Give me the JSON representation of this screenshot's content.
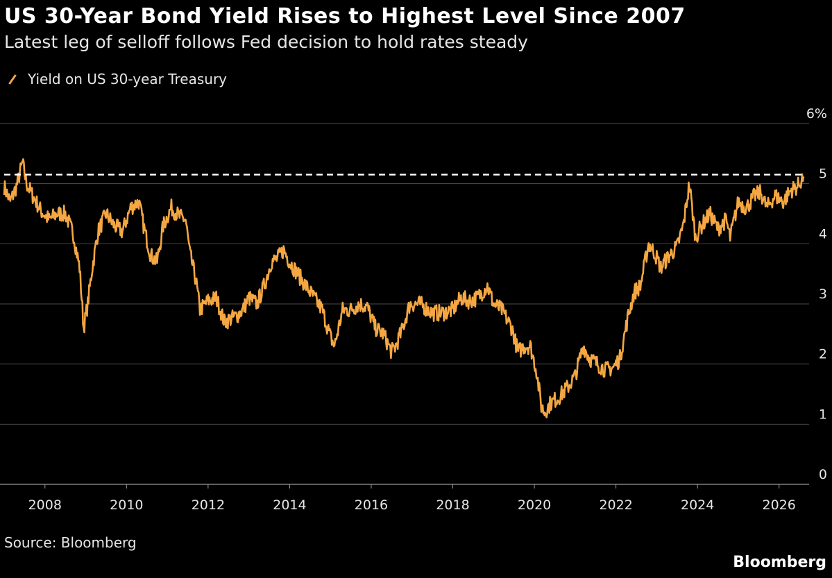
{
  "header": {
    "title": "US 30-Year Bond Yield Rises to Highest Level Since 2007",
    "subtitle": "Latest leg of selloff follows Fed decision to hold rates steady"
  },
  "legend": {
    "label": "Yield on US 30-year Treasury"
  },
  "footer": {
    "source": "Source: Bloomberg",
    "brand": "Bloomberg"
  },
  "colors": {
    "line": "#f4a742",
    "background": "#000000",
    "grid": "#4d4d4d",
    "reference_line": "#ffffff"
  },
  "chart_data": {
    "type": "line",
    "title": "US 30-Year Bond Yield Rises to Highest Level Since 2007",
    "subtitle": "Latest leg of selloff follows Fed decision to hold rates steady",
    "xlabel": "",
    "ylabel": "",
    "x_ticks": [
      "2008",
      "2010",
      "2012",
      "2014",
      "2016",
      "2018",
      "2020",
      "2022",
      "2024",
      "2026"
    ],
    "y_ticks": [
      "0",
      "1",
      "2",
      "3",
      "4",
      "5",
      "6%"
    ],
    "ylim": [
      0,
      6
    ],
    "xlim": [
      2007.0,
      2026.6
    ],
    "grid": true,
    "legend_position": "top-left",
    "reference_line": {
      "y": 5.15,
      "style": "dashed"
    },
    "series": [
      {
        "name": "Yield on US 30-year Treasury",
        "x": [
          2007.0,
          2007.15,
          2007.3,
          2007.45,
          2007.55,
          2007.7,
          2007.9,
          2008.1,
          2008.3,
          2008.5,
          2008.7,
          2008.85,
          2008.95,
          2009.05,
          2009.15,
          2009.3,
          2009.5,
          2009.7,
          2009.9,
          2010.1,
          2010.3,
          2010.45,
          2010.6,
          2010.75,
          2010.9,
          2011.1,
          2011.3,
          2011.45,
          2011.55,
          2011.7,
          2011.8,
          2012.0,
          2012.2,
          2012.4,
          2012.55,
          2012.7,
          2012.85,
          2013.0,
          2013.2,
          2013.4,
          2013.55,
          2013.7,
          2013.85,
          2014.0,
          2014.2,
          2014.4,
          2014.6,
          2014.8,
          2015.0,
          2015.1,
          2015.3,
          2015.5,
          2015.7,
          2015.9,
          2016.1,
          2016.3,
          2016.5,
          2016.6,
          2016.75,
          2016.95,
          2017.2,
          2017.5,
          2017.75,
          2018.0,
          2018.2,
          2018.4,
          2018.6,
          2018.85,
          2019.0,
          2019.2,
          2019.45,
          2019.6,
          2019.75,
          2019.9,
          2020.05,
          2020.17,
          2020.25,
          2020.4,
          2020.6,
          2020.8,
          2021.0,
          2021.2,
          2021.35,
          2021.55,
          2021.75,
          2021.95,
          2022.1,
          2022.3,
          2022.45,
          2022.6,
          2022.8,
          2022.95,
          2023.1,
          2023.3,
          2023.5,
          2023.65,
          2023.8,
          2023.95,
          2024.1,
          2024.3,
          2024.5,
          2024.7,
          2024.8,
          2025.0,
          2025.2,
          2025.4,
          2025.55,
          2025.7,
          2025.9,
          2026.1,
          2026.3,
          2026.45,
          2026.6
        ],
        "values": [
          4.95,
          4.7,
          4.95,
          5.35,
          5.0,
          4.8,
          4.55,
          4.4,
          4.5,
          4.5,
          4.15,
          3.6,
          2.6,
          3.0,
          3.55,
          4.2,
          4.5,
          4.3,
          4.2,
          4.6,
          4.7,
          4.2,
          3.8,
          3.7,
          4.3,
          4.6,
          4.45,
          4.4,
          3.85,
          3.4,
          2.9,
          3.05,
          3.1,
          2.7,
          2.75,
          2.8,
          2.9,
          3.1,
          3.0,
          3.35,
          3.7,
          3.75,
          3.9,
          3.7,
          3.5,
          3.3,
          3.1,
          2.9,
          2.45,
          2.3,
          2.9,
          2.9,
          3.0,
          2.95,
          2.6,
          2.5,
          2.2,
          2.3,
          2.55,
          3.0,
          3.0,
          2.85,
          2.85,
          2.9,
          3.1,
          3.05,
          3.1,
          3.3,
          3.0,
          2.9,
          2.6,
          2.2,
          2.3,
          2.3,
          1.9,
          1.3,
          1.2,
          1.35,
          1.45,
          1.6,
          1.8,
          2.3,
          2.1,
          2.0,
          1.9,
          1.95,
          2.1,
          2.8,
          3.2,
          3.3,
          4.0,
          3.85,
          3.6,
          3.8,
          3.95,
          4.3,
          5.0,
          4.1,
          4.3,
          4.5,
          4.25,
          4.4,
          4.1,
          4.7,
          4.6,
          4.8,
          4.85,
          4.6,
          4.8,
          4.7,
          4.9,
          4.95,
          5.12
        ]
      }
    ]
  }
}
